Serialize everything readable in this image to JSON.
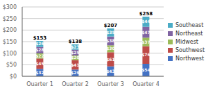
{
  "chart_data": {
    "type": "bar",
    "stacked": true,
    "data_labels": true,
    "grid": true,
    "legend": "right",
    "categories": [
      "Quarter 1",
      "Quarter 2",
      "Quarter 3",
      "Quarter 4"
    ],
    "series": [
      {
        "name": "Northwest",
        "color": "#4472C4",
        "values": [
          32,
          29,
          43,
          54
        ],
        "value_labels": [
          "$32",
          "$29",
          "$43",
          "$54"
        ]
      },
      {
        "name": "Southwest",
        "color": "#BE4B48",
        "values": [
          45,
          41,
          61,
          76
        ],
        "value_labels": [
          "$45",
          "$41",
          "$61",
          "$76"
        ]
      },
      {
        "name": "Midwest",
        "color": "#9BBB59",
        "values": [
          22,
          20,
          30,
          37
        ],
        "value_labels": [
          "$22",
          "$20",
          "$30",
          "$37"
        ]
      },
      {
        "name": "Northeast",
        "color": "#8064A2",
        "values": [
          28,
          25,
          38,
          47
        ],
        "value_labels": [
          "$28",
          "$25",
          "$38",
          "$47"
        ]
      },
      {
        "name": "Southeast",
        "color": "#4BACC6",
        "values": [
          26,
          23,
          35,
          44
        ],
        "value_labels": [
          "$26",
          "$23",
          "$35",
          "$44"
        ]
      }
    ],
    "totals": [
      {
        "value": 153,
        "label": "$153"
      },
      {
        "value": 138,
        "label": "$138"
      },
      {
        "value": 207,
        "label": "$207"
      },
      {
        "value": 258,
        "label": "$258"
      }
    ],
    "ylim": [
      0,
      300
    ],
    "yticks": [
      {
        "value": 0,
        "label": "$0"
      },
      {
        "value": 50,
        "label": "$50"
      },
      {
        "value": 100,
        "label": "$100"
      },
      {
        "value": 150,
        "label": "$150"
      },
      {
        "value": 200,
        "label": "$200"
      },
      {
        "value": 250,
        "label": "$250"
      },
      {
        "value": 300,
        "label": "$300"
      }
    ]
  }
}
